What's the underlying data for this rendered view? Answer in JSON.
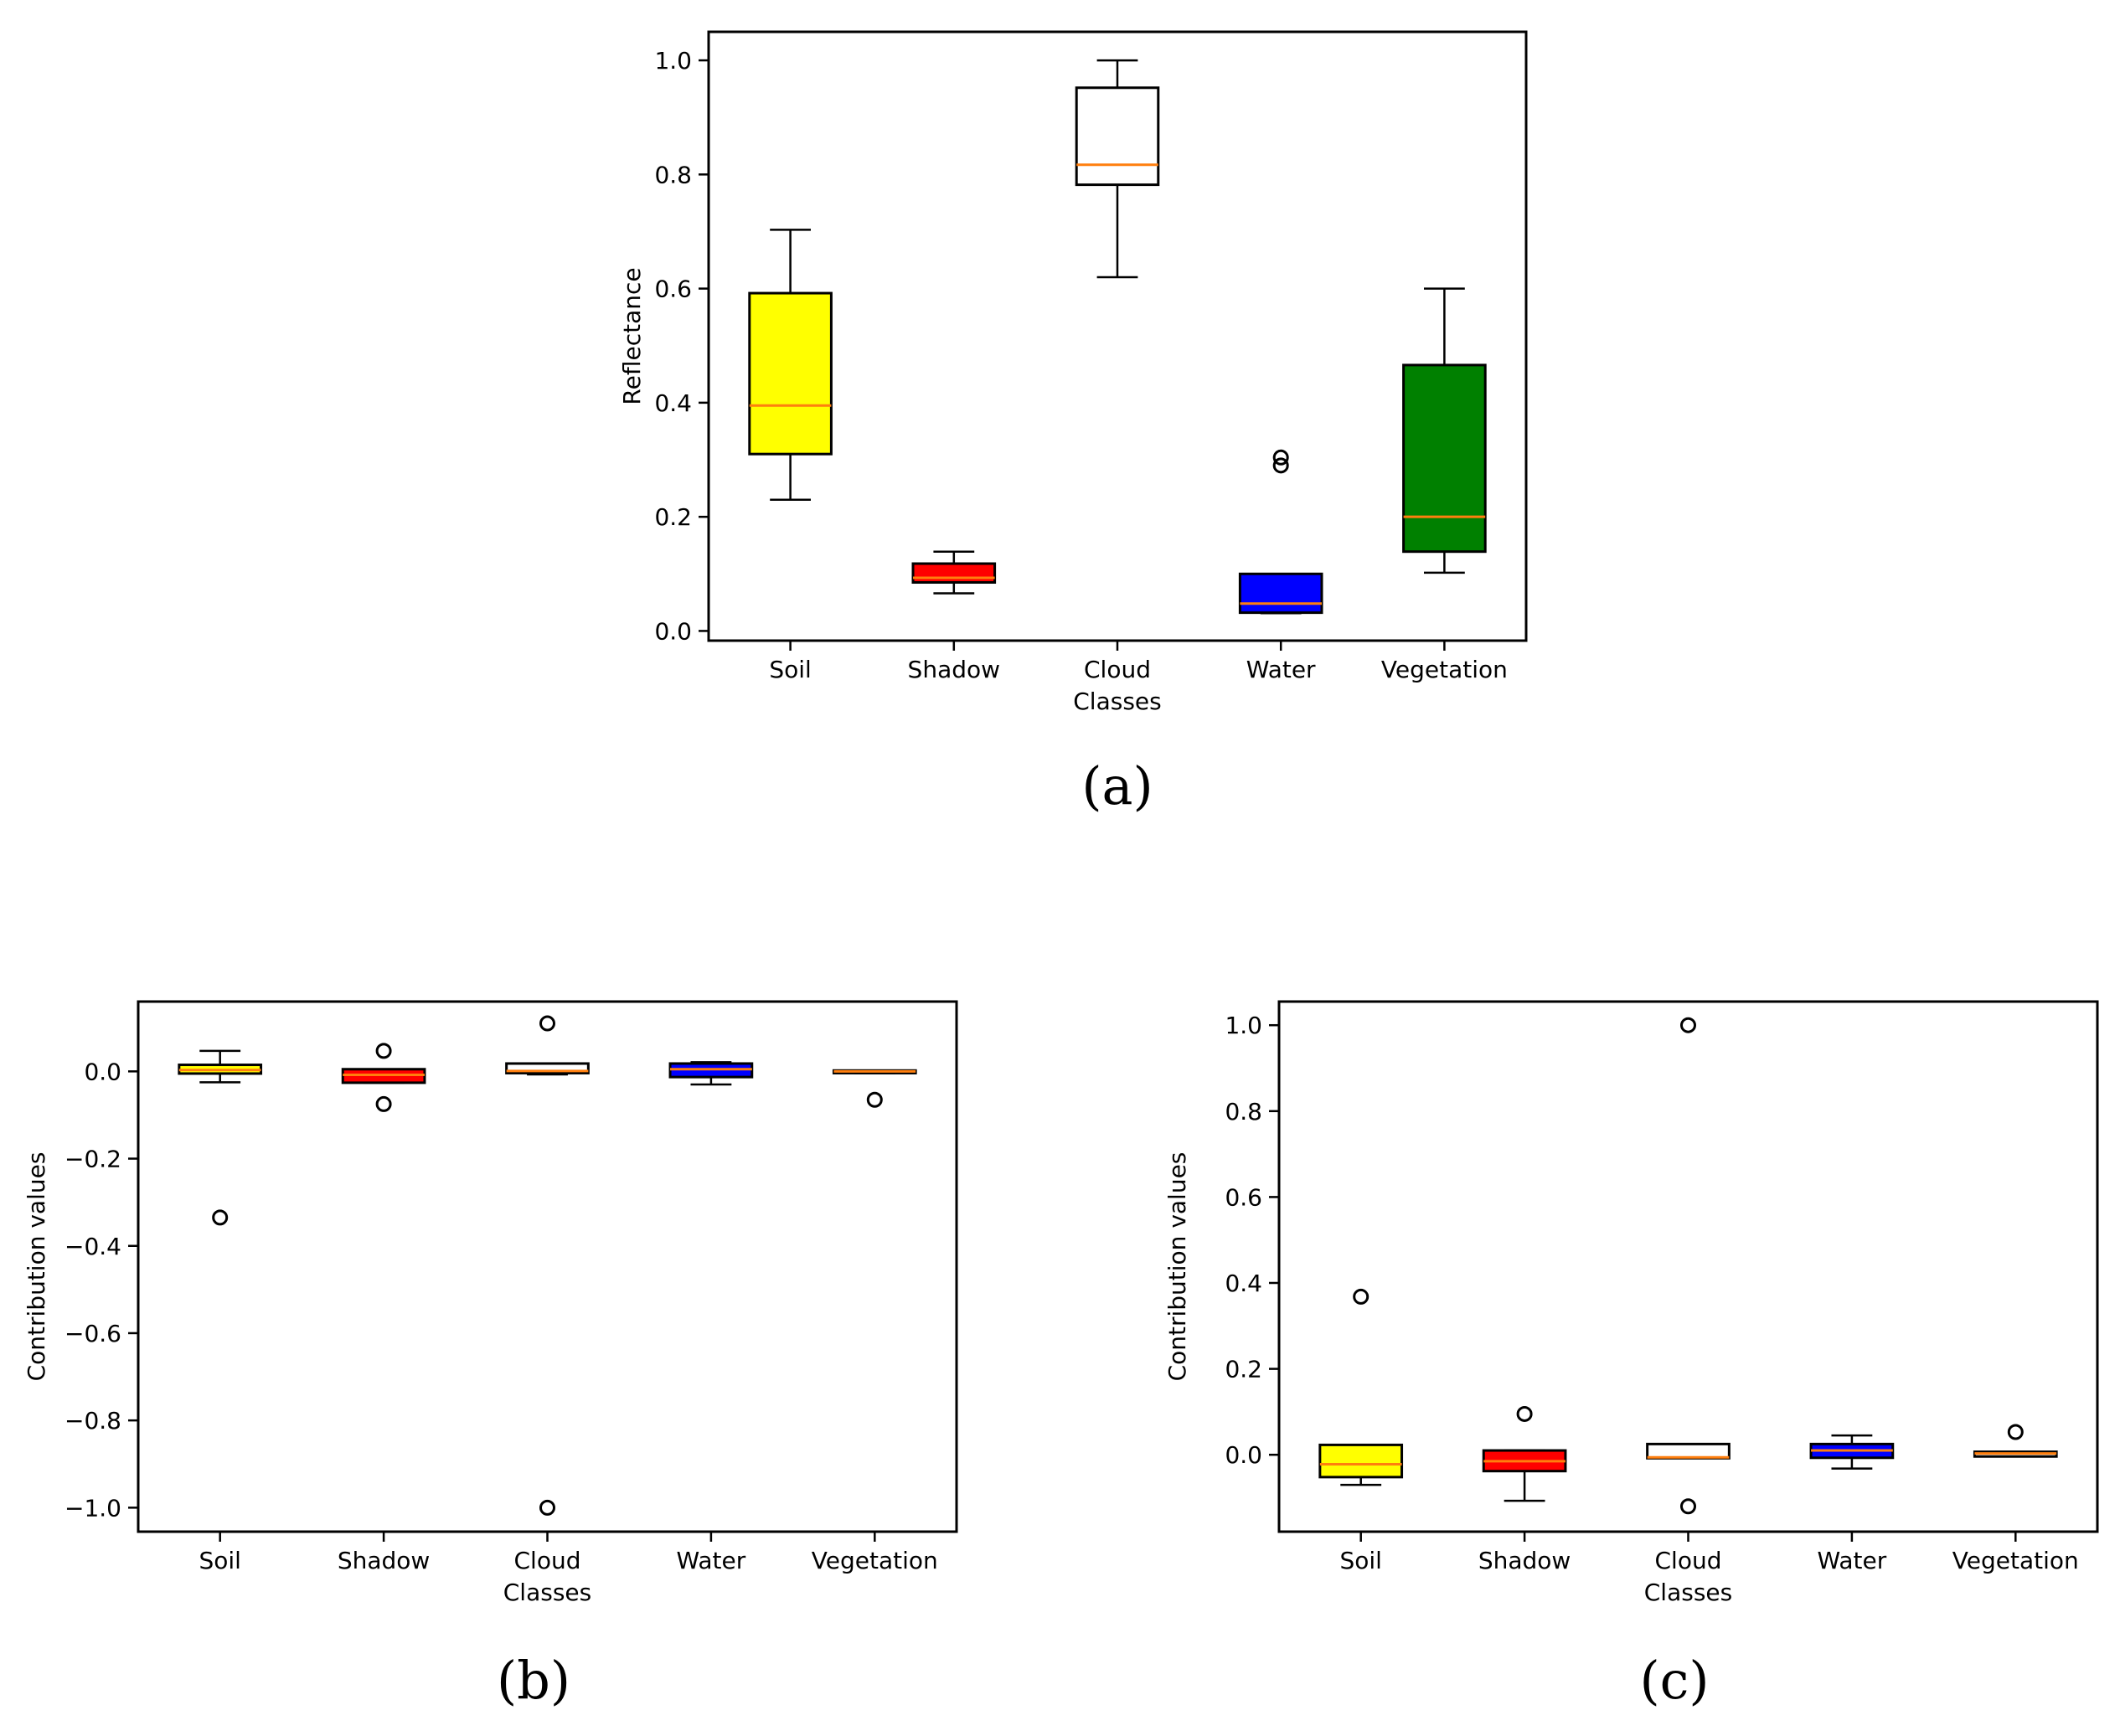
{
  "chart_data": [
    {
      "panel": "a",
      "panel_label": "(a)",
      "type": "box",
      "xlabel": "Classes",
      "ylabel": "Reflectance",
      "ylim": [
        -0.017,
        1.05
      ],
      "yticks": [
        0.0,
        0.2,
        0.4,
        0.6,
        0.8,
        1.0
      ],
      "ytick_labels": [
        "0.0",
        "0.2",
        "0.4",
        "0.6",
        "0.8",
        "1.0"
      ],
      "median_color": "#ff7f0e",
      "boxes": [
        {
          "label": "Soil",
          "color": "#ffff00",
          "whislo": 0.23,
          "q1": 0.31,
          "median": 0.395,
          "q3": 0.592,
          "whishi": 0.703,
          "fliers": []
        },
        {
          "label": "Shadow",
          "color": "#ff0000",
          "whislo": 0.066,
          "q1": 0.085,
          "median": 0.093,
          "q3": 0.118,
          "whishi": 0.139,
          "fliers": []
        },
        {
          "label": "Cloud",
          "color": "#ffffff",
          "whislo": 0.62,
          "q1": 0.782,
          "median": 0.817,
          "q3": 0.952,
          "whishi": 1.0,
          "fliers": []
        },
        {
          "label": "Water",
          "color": "#0000ff",
          "whislo": 0.031,
          "q1": 0.032,
          "median": 0.048,
          "q3": 0.1,
          "whishi": 0.1,
          "fliers": [
            0.29,
            0.304
          ]
        },
        {
          "label": "Vegetation",
          "color": "#008000",
          "whislo": 0.102,
          "q1": 0.139,
          "median": 0.2,
          "q3": 0.466,
          "whishi": 0.6,
          "fliers": []
        }
      ]
    },
    {
      "panel": "b",
      "panel_label": "(b)",
      "type": "box",
      "xlabel": "Classes",
      "ylabel": "Contribution values",
      "ylim": [
        -1.055,
        0.16
      ],
      "yticks": [
        -1.0,
        -0.8,
        -0.6,
        -0.4,
        -0.2,
        0.0
      ],
      "ytick_labels": [
        "−1.0",
        "−0.8",
        "−0.6",
        "−0.4",
        "−0.2",
        "0.0"
      ],
      "median_color": "#ff7f0e",
      "boxes": [
        {
          "label": "Soil",
          "color": "#ffff00",
          "whislo": -0.025,
          "q1": -0.005,
          "median": 0.003,
          "q3": 0.015,
          "whishi": 0.047,
          "fliers": [
            -0.335
          ]
        },
        {
          "label": "Shadow",
          "color": "#ff0000",
          "whislo": -0.026,
          "q1": -0.026,
          "median": -0.008,
          "q3": 0.005,
          "whishi": 0.005,
          "fliers": [
            0.047,
            -0.075
          ]
        },
        {
          "label": "Cloud",
          "color": "#ffffff",
          "whislo": -0.007,
          "q1": -0.004,
          "median": 0.001,
          "q3": 0.018,
          "whishi": 0.018,
          "fliers": [
            0.11,
            -1.0
          ]
        },
        {
          "label": "Water",
          "color": "#0000ff",
          "whislo": -0.03,
          "q1": -0.013,
          "median": 0.005,
          "q3": 0.018,
          "whishi": 0.021,
          "fliers": []
        },
        {
          "label": "Vegetation",
          "color": "#ffffff",
          "whislo": -0.004,
          "q1": -0.004,
          "median": 0.0,
          "q3": 0.002,
          "whishi": 0.002,
          "fliers": [
            -0.065
          ]
        }
      ]
    },
    {
      "panel": "c",
      "panel_label": "(c)",
      "type": "box",
      "xlabel": "Classes",
      "ylabel": "Contribution values",
      "ylim": [
        -0.179,
        1.055
      ],
      "yticks": [
        0.0,
        0.2,
        0.4,
        0.6,
        0.8,
        1.0
      ],
      "ytick_labels": [
        "0.0",
        "0.2",
        "0.4",
        "0.6",
        "0.8",
        "1.0"
      ],
      "median_color": "#ff7f0e",
      "boxes": [
        {
          "label": "Soil",
          "color": "#ffff00",
          "whislo": -0.07,
          "q1": -0.052,
          "median": -0.022,
          "q3": 0.023,
          "whishi": 0.023,
          "fliers": [
            0.368
          ]
        },
        {
          "label": "Shadow",
          "color": "#ff0000",
          "whislo": -0.107,
          "q1": -0.038,
          "median": -0.015,
          "q3": 0.01,
          "whishi": 0.01,
          "fliers": [
            0.095
          ]
        },
        {
          "label": "Cloud",
          "color": "#ffffff",
          "whislo": -0.008,
          "q1": -0.008,
          "median": -0.006,
          "q3": 0.025,
          "whishi": 0.025,
          "fliers": [
            1.0,
            -0.12
          ]
        },
        {
          "label": "Water",
          "color": "#0000ff",
          "whislo": -0.032,
          "q1": -0.007,
          "median": 0.01,
          "q3": 0.025,
          "whishi": 0.045,
          "fliers": []
        },
        {
          "label": "Vegetation",
          "color": "#ffffff",
          "whislo": -0.004,
          "q1": -0.004,
          "median": 0.003,
          "q3": 0.007,
          "whishi": 0.007,
          "fliers": [
            0.053
          ]
        }
      ]
    }
  ]
}
